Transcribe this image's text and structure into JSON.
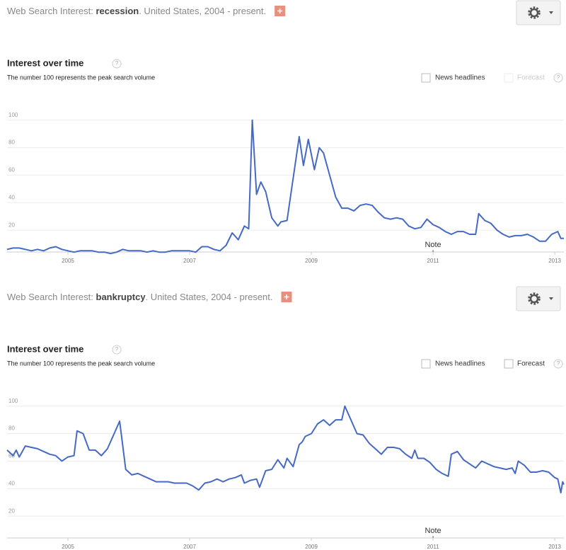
{
  "chart_data": [
    {
      "type": "line",
      "header_prefix": "Web Search Interest: ",
      "term": "recession",
      "header_suffix": ". United States, 2004 - present.",
      "title": "Interest over time",
      "subtitle": "The number 100 represents the peak search volume",
      "news_label": "News headlines",
      "forecast_label": "Forecast",
      "forecast_enabled": false,
      "annotation": "Note",
      "annotation_x": 2011,
      "color": "#4569c4",
      "grid": true,
      "xlim": [
        2004,
        2013.15
      ],
      "xticks": [
        2005,
        2007,
        2009,
        2011,
        2013
      ],
      "ylim": [
        0,
        105
      ],
      "yticks": [
        20,
        40,
        60,
        80,
        100
      ],
      "x": [
        2004.0,
        2004.1,
        2004.2,
        2004.3,
        2004.4,
        2004.5,
        2004.6,
        2004.7,
        2004.8,
        2004.9,
        2005.0,
        2005.1,
        2005.2,
        2005.3,
        2005.4,
        2005.5,
        2005.6,
        2005.7,
        2005.8,
        2005.9,
        2006.0,
        2006.1,
        2006.2,
        2006.3,
        2006.4,
        2006.5,
        2006.6,
        2006.7,
        2006.8,
        2006.9,
        2007.0,
        2007.1,
        2007.2,
        2007.3,
        2007.4,
        2007.5,
        2007.6,
        2007.7,
        2007.8,
        2007.9,
        2007.97,
        2008.03,
        2008.1,
        2008.17,
        2008.25,
        2008.35,
        2008.45,
        2008.5,
        2008.6,
        2008.8,
        2008.87,
        2008.95,
        2009.05,
        2009.13,
        2009.2,
        2009.3,
        2009.4,
        2009.5,
        2009.6,
        2009.7,
        2009.8,
        2009.9,
        2010.0,
        2010.1,
        2010.2,
        2010.3,
        2010.4,
        2010.5,
        2010.6,
        2010.7,
        2010.8,
        2010.9,
        2011.0,
        2011.1,
        2011.2,
        2011.3,
        2011.4,
        2011.5,
        2011.6,
        2011.7,
        2011.75,
        2011.85,
        2011.95,
        2012.05,
        2012.15,
        2012.25,
        2012.35,
        2012.45,
        2012.55,
        2012.65,
        2012.75,
        2012.85,
        2012.95,
        2013.05,
        2013.1,
        2013.15
      ],
      "values": [
        6,
        7,
        7,
        6,
        5,
        6,
        5,
        7,
        8,
        6,
        5,
        4,
        5,
        5,
        5,
        4,
        4,
        3,
        4,
        6,
        5,
        5,
        5,
        4,
        5,
        4,
        4,
        5,
        5,
        5,
        5,
        4,
        8,
        8,
        6,
        5,
        9,
        18,
        13,
        23,
        21,
        100,
        46,
        55,
        48,
        29,
        23,
        26,
        27,
        88,
        67,
        86,
        64,
        80,
        76,
        60,
        44,
        36,
        36,
        34,
        38,
        39,
        38,
        33,
        29,
        28,
        29,
        28,
        23,
        21,
        22,
        28,
        24,
        22,
        19,
        17,
        19,
        19,
        17,
        17,
        32,
        27,
        25,
        20,
        17,
        15,
        16,
        16,
        17,
        15,
        12,
        12,
        17,
        19,
        14,
        14
      ]
    },
    {
      "type": "line",
      "header_prefix": "Web Search Interest: ",
      "term": "bankruptcy",
      "header_suffix": ". United States, 2004 - present.",
      "title": "Interest over time",
      "subtitle": "The number 100 represents the peak search volume",
      "news_label": "News headlines",
      "forecast_label": "Forecast",
      "forecast_enabled": true,
      "annotation": "Note",
      "annotation_x": 2011,
      "color": "#4569c4",
      "grid": true,
      "xlim": [
        2004,
        2013.15
      ],
      "xticks": [
        2005,
        2007,
        2009,
        2011,
        2013
      ],
      "ylim": [
        0,
        105
      ],
      "yticks": [
        20,
        40,
        60,
        80,
        100
      ],
      "x": [
        2004.0,
        2004.05,
        2004.1,
        2004.15,
        2004.2,
        2004.3,
        2004.4,
        2004.5,
        2004.6,
        2004.7,
        2004.8,
        2004.9,
        2005.0,
        2005.1,
        2005.15,
        2005.25,
        2005.35,
        2005.45,
        2005.55,
        2005.65,
        2005.75,
        2005.85,
        2005.95,
        2006.05,
        2006.15,
        2006.25,
        2006.35,
        2006.45,
        2006.55,
        2006.65,
        2006.75,
        2006.85,
        2006.95,
        2007.05,
        2007.15,
        2007.25,
        2007.35,
        2007.45,
        2007.55,
        2007.65,
        2007.75,
        2007.85,
        2007.9,
        2008.0,
        2008.1,
        2008.15,
        2008.25,
        2008.35,
        2008.45,
        2008.55,
        2008.6,
        2008.7,
        2008.8,
        2008.85,
        2008.9,
        2009.0,
        2009.1,
        2009.2,
        2009.3,
        2009.4,
        2009.5,
        2009.55,
        2009.65,
        2009.75,
        2009.85,
        2009.95,
        2010.05,
        2010.15,
        2010.25,
        2010.35,
        2010.45,
        2010.55,
        2010.65,
        2010.7,
        2010.75,
        2010.85,
        2010.95,
        2011.05,
        2011.15,
        2011.25,
        2011.3,
        2011.4,
        2011.5,
        2011.6,
        2011.7,
        2011.8,
        2011.9,
        2012.0,
        2012.1,
        2012.2,
        2012.3,
        2012.35,
        2012.4,
        2012.5,
        2012.6,
        2012.7,
        2012.8,
        2012.9,
        2013.0,
        2013.05,
        2013.1,
        2013.13,
        2013.15
      ],
      "values": [
        68,
        66,
        64,
        68,
        63,
        71,
        70,
        69,
        67,
        65,
        64,
        60,
        63,
        64,
        82,
        80,
        68,
        68,
        64,
        69,
        79,
        89,
        54,
        50,
        51,
        49,
        47,
        45,
        45,
        45,
        44,
        44,
        44,
        42,
        39,
        44,
        45,
        47,
        45,
        47,
        48,
        50,
        44,
        46,
        47,
        41,
        53,
        54,
        61,
        55,
        62,
        56,
        72,
        74,
        78,
        80,
        87,
        90,
        86,
        90,
        90,
        100,
        90,
        80,
        79,
        73,
        69,
        65,
        70,
        70,
        69,
        65,
        62,
        68,
        62,
        62,
        59,
        54,
        51,
        49,
        65,
        67,
        61,
        58,
        55,
        60,
        58,
        56,
        55,
        54,
        55,
        51,
        60,
        57,
        52,
        52,
        53,
        52,
        48,
        47,
        37,
        45,
        43
      ]
    }
  ]
}
